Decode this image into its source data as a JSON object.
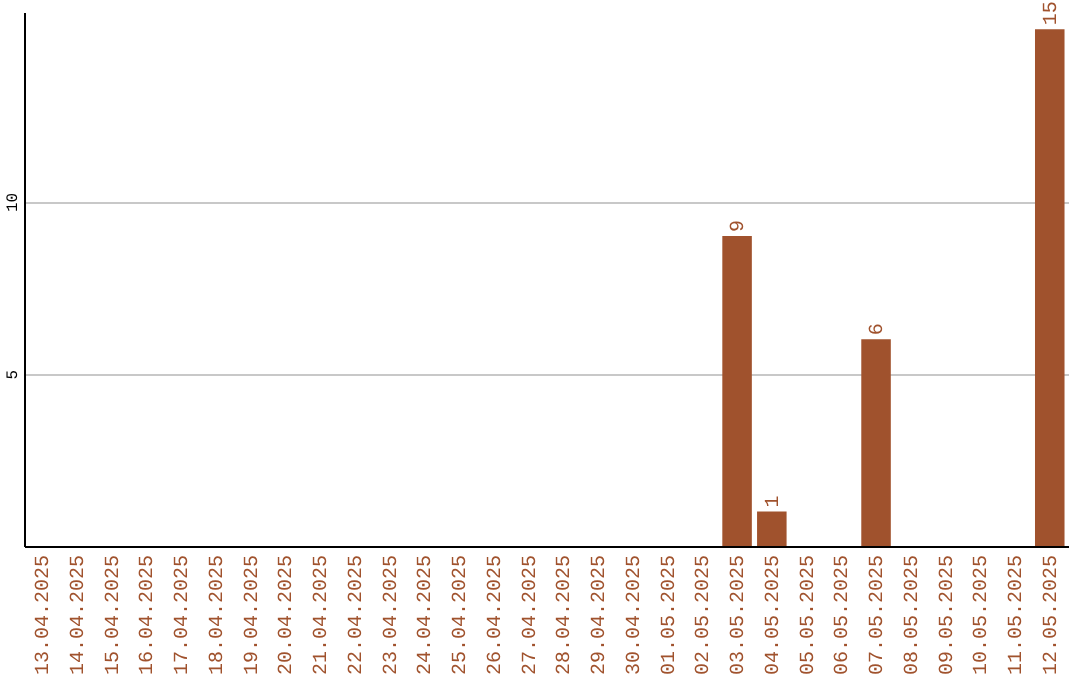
{
  "chart_data": {
    "type": "bar",
    "categories": [
      "13.04.2025",
      "14.04.2025",
      "15.04.2025",
      "16.04.2025",
      "17.04.2025",
      "18.04.2025",
      "19.04.2025",
      "20.04.2025",
      "21.04.2025",
      "22.04.2025",
      "23.04.2025",
      "24.04.2025",
      "25.04.2025",
      "26.04.2025",
      "27.04.2025",
      "28.04.2025",
      "29.04.2025",
      "30.04.2025",
      "01.05.2025",
      "02.05.2025",
      "03.05.2025",
      "04.05.2025",
      "05.05.2025",
      "06.05.2025",
      "07.05.2025",
      "08.05.2025",
      "09.05.2025",
      "10.05.2025",
      "11.05.2025",
      "12.05.2025"
    ],
    "values": [
      0,
      0,
      0,
      0,
      0,
      0,
      0,
      0,
      0,
      0,
      0,
      0,
      0,
      0,
      0,
      0,
      0,
      0,
      0,
      0,
      9,
      1,
      0,
      0,
      6,
      0,
      0,
      0,
      0,
      15
    ],
    "value_labels": [
      null,
      null,
      null,
      null,
      null,
      null,
      null,
      null,
      null,
      null,
      null,
      null,
      null,
      null,
      null,
      null,
      null,
      null,
      null,
      null,
      "9",
      "1",
      null,
      null,
      "6",
      null,
      null,
      null,
      null,
      "15"
    ],
    "color": "#a0522d",
    "ylim": [
      0,
      15.5
    ],
    "yticks": [
      5,
      10
    ],
    "grid": "y"
  }
}
